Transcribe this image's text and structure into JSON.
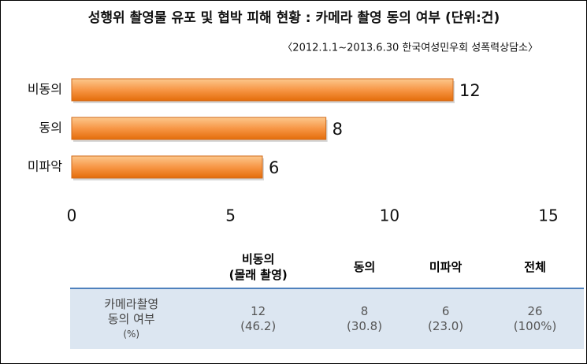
{
  "chart_data": {
    "type": "hbar",
    "title": "성행위 촬영물 유포 및 협박 피해 현황 : 카메라 촬영 동의 여부 (단위:건)",
    "subtitle": "〈2012.1.1~2013.6.30 한국여성민우회 성폭력상담소〉",
    "categories": [
      "비동의",
      "동의",
      "미파악"
    ],
    "values": [
      12,
      8,
      6
    ],
    "color": "#f79646",
    "xlim": [
      0,
      15
    ],
    "xticks": [
      0,
      5,
      10,
      15
    ]
  },
  "table": {
    "columns": [
      [
        "비동의",
        "(몰래 촬영)"
      ],
      [
        "동의"
      ],
      [
        "미파악"
      ],
      [
        "전체"
      ]
    ],
    "rows": [
      {
        "label": [
          "카메라촬영",
          "동의 여부",
          "(%)"
        ],
        "cells": [
          [
            "12",
            "(46.2)"
          ],
          [
            "8",
            "(30.8)"
          ],
          [
            "6",
            "(23.0)"
          ],
          [
            "26",
            "(100%)"
          ]
        ]
      }
    ]
  }
}
